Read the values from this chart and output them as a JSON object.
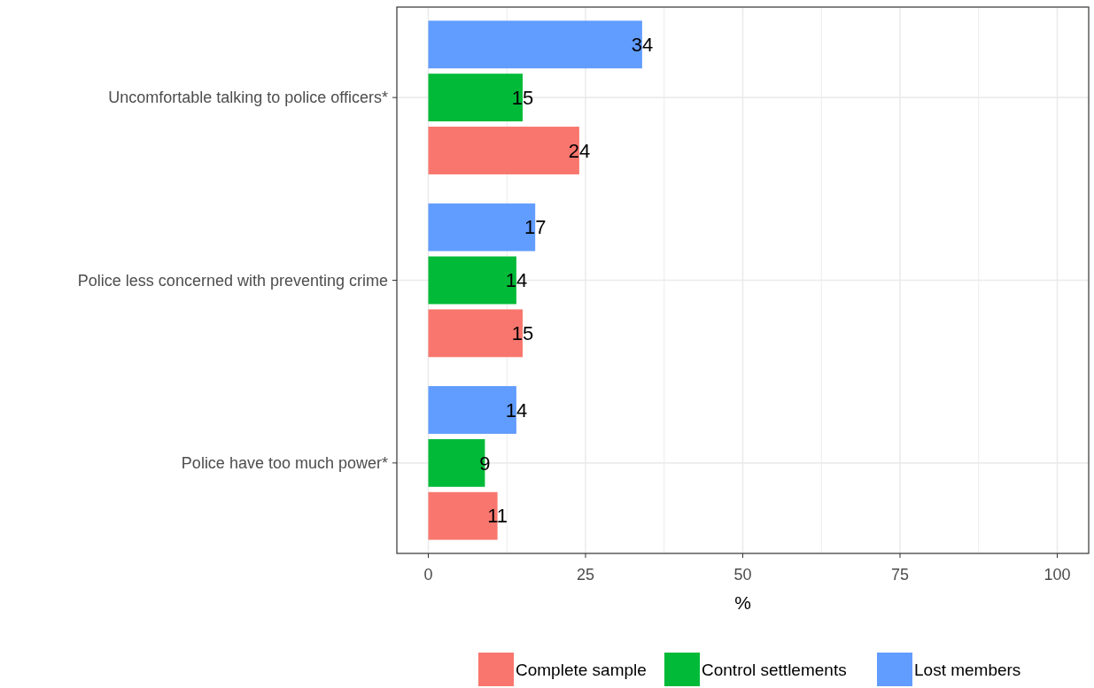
{
  "chart_data": {
    "type": "bar",
    "orientation": "horizontal",
    "xlabel": "%",
    "categories": [
      "Uncomfortable talking to police officers*",
      "Police less concerned with preventing crime",
      "Police have too much power*"
    ],
    "series": [
      {
        "name": "Complete sample",
        "color": "#f8766d",
        "values": [
          24,
          15,
          11
        ]
      },
      {
        "name": "Control settlements",
        "color": "#00ba38",
        "values": [
          15,
          14,
          9
        ]
      },
      {
        "name": "Lost members",
        "color": "#619cff",
        "values": [
          34,
          17,
          14
        ]
      }
    ],
    "xlim": [
      -5,
      105
    ],
    "xticks": [
      0,
      {
        "value": 12.5,
        "label": null
      },
      25,
      {
        "value": 37.5,
        "label": null
      },
      50,
      {
        "value": 62.5,
        "label": null
      },
      75,
      {
        "value": 87.5,
        "label": null
      },
      100
    ],
    "grid": true,
    "data_labels": true,
    "legend": "bottom"
  }
}
